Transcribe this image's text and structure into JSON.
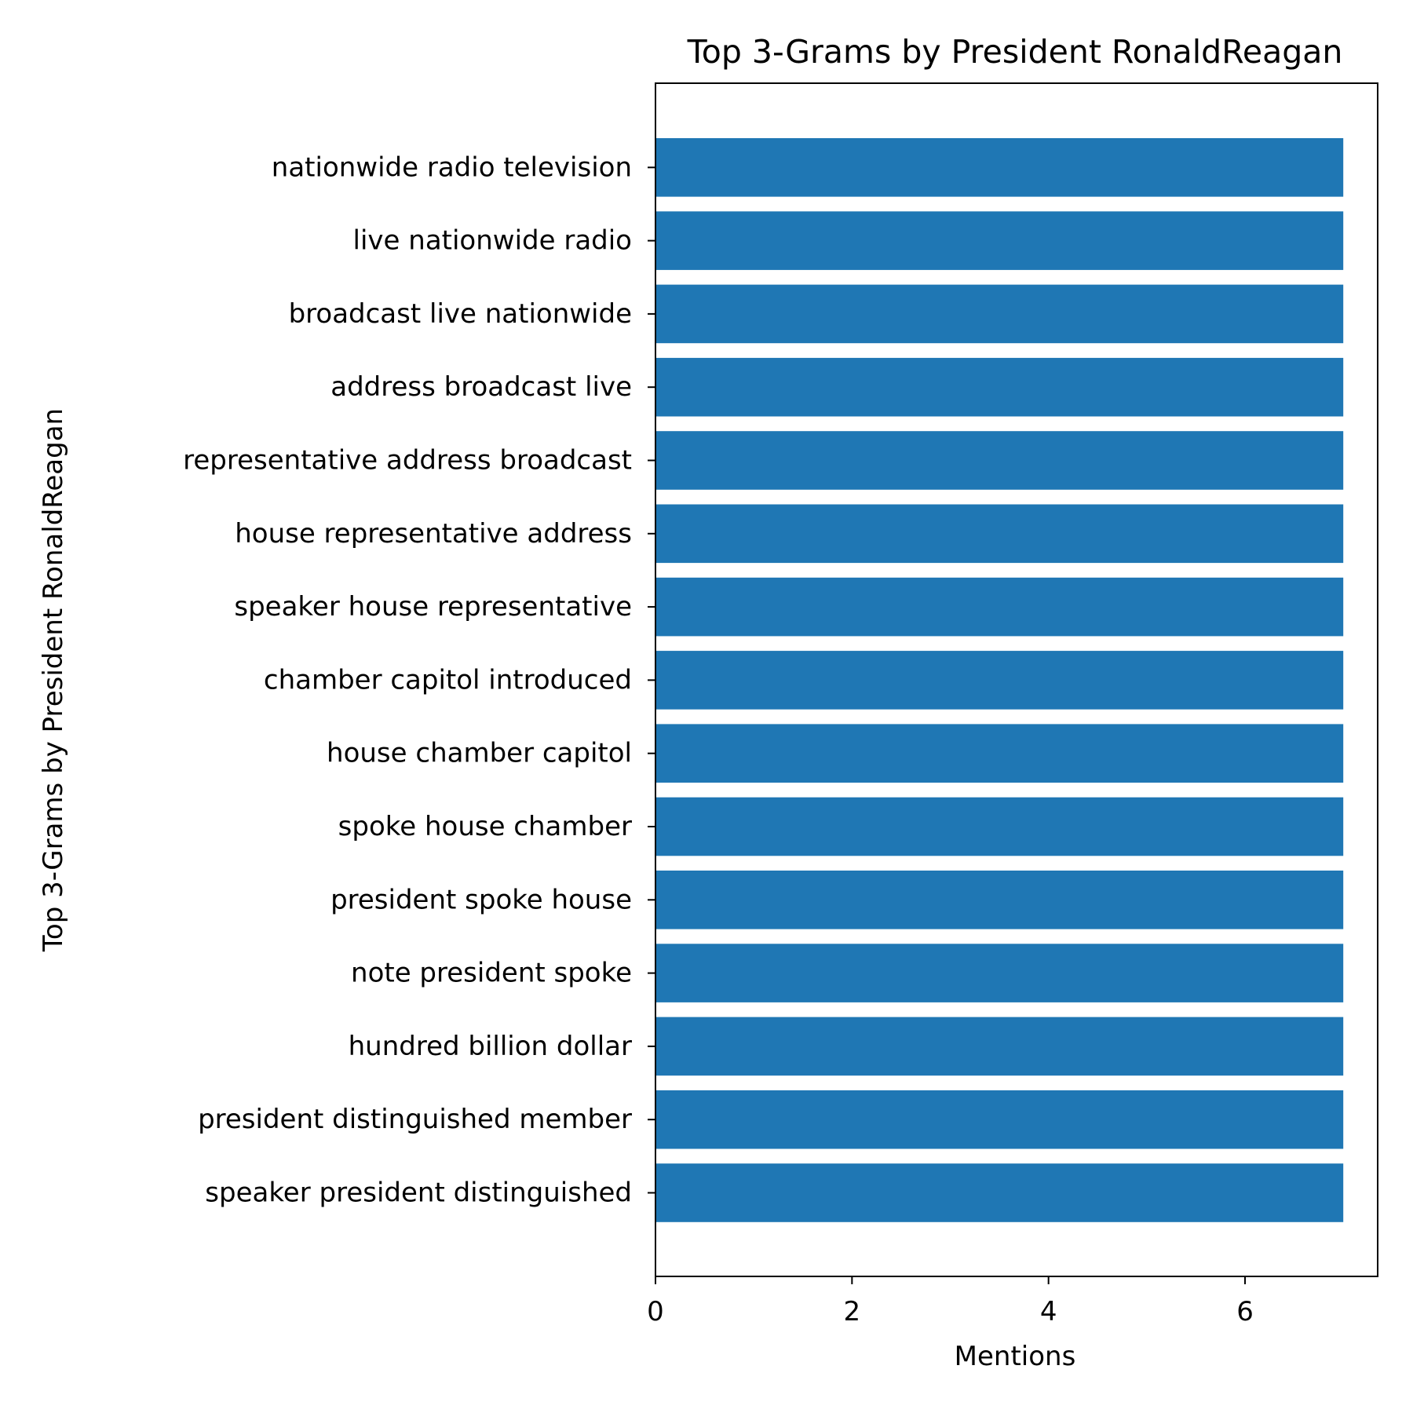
{
  "chart_data": {
    "type": "bar",
    "orientation": "horizontal",
    "title": "Top 3-Grams by President RonaldReagan",
    "xlabel": "Mentions",
    "ylabel": "Top 3-Grams by President RonaldReagan",
    "xlim": [
      0,
      7.35
    ],
    "xticks": [
      0,
      2,
      4,
      6
    ],
    "grid": false,
    "bar_color": "#1f77b4",
    "categories": [
      "speaker president distinguished",
      "president distinguished member",
      "hundred billion dollar",
      "note president spoke",
      "president spoke house",
      "spoke house chamber",
      "house chamber capitol",
      "chamber capitol introduced",
      "speaker house representative",
      "house representative address",
      "representative address broadcast",
      "address broadcast live",
      "broadcast live nationwide",
      "live nationwide radio",
      "nationwide radio television"
    ],
    "values": [
      7,
      7,
      7,
      7,
      7,
      7,
      7,
      7,
      7,
      7,
      7,
      7,
      7,
      7,
      7
    ]
  }
}
